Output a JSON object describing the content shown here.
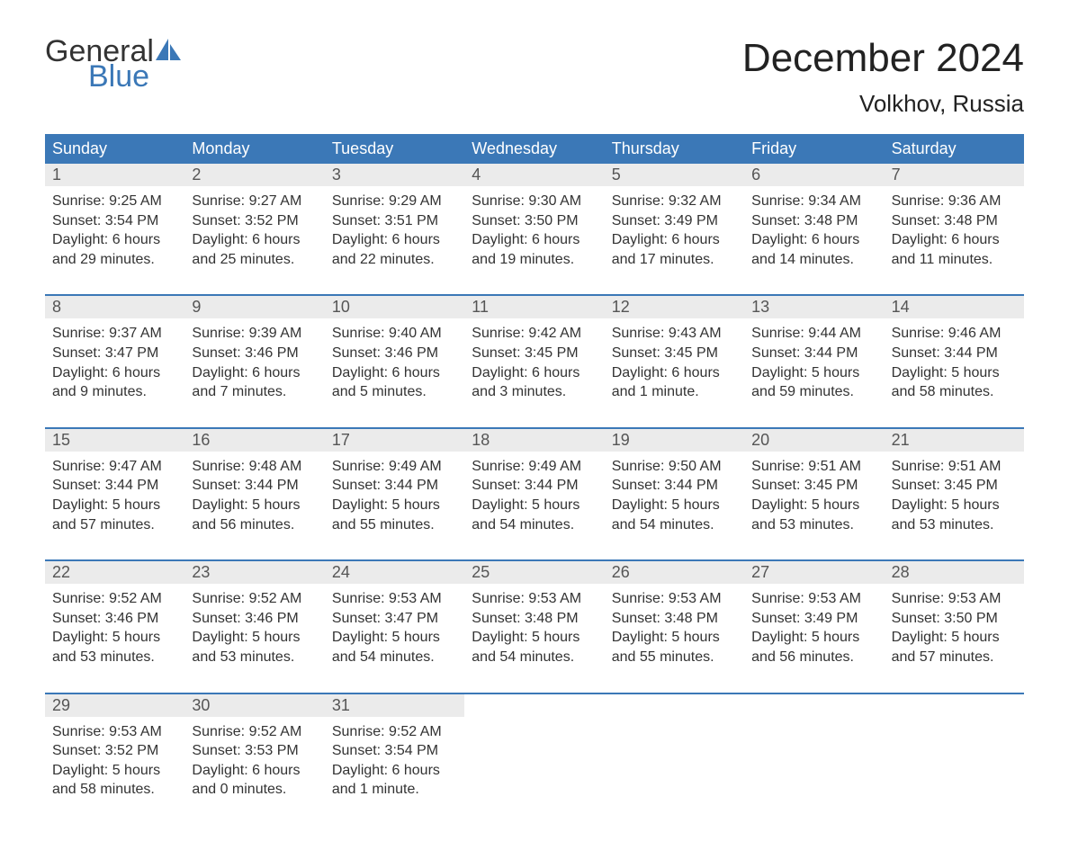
{
  "logo": {
    "text1": "General",
    "text2": "Blue",
    "color_general": "#333333",
    "color_blue": "#3b78b7"
  },
  "title": "December 2024",
  "location": "Volkhov, Russia",
  "colors": {
    "header_bg": "#3b78b7",
    "header_text": "#ffffff",
    "daynum_bg": "#ebebeb",
    "daynum_text": "#555555",
    "body_text": "#333333",
    "week_border": "#3b78b7",
    "page_bg": "#ffffff"
  },
  "fonts": {
    "title_size": 44,
    "location_size": 26,
    "dow_size": 18,
    "daynum_size": 18,
    "body_size": 16
  },
  "day_labels": {
    "sunrise_prefix": "Sunrise: ",
    "sunset_prefix": "Sunset: ",
    "daylight_prefix": "Daylight: "
  },
  "dow": [
    "Sunday",
    "Monday",
    "Tuesday",
    "Wednesday",
    "Thursday",
    "Friday",
    "Saturday"
  ],
  "days": [
    {
      "n": 1,
      "sunrise": "9:25 AM",
      "sunset": "3:54 PM",
      "daylight": "6 hours and 29 minutes."
    },
    {
      "n": 2,
      "sunrise": "9:27 AM",
      "sunset": "3:52 PM",
      "daylight": "6 hours and 25 minutes."
    },
    {
      "n": 3,
      "sunrise": "9:29 AM",
      "sunset": "3:51 PM",
      "daylight": "6 hours and 22 minutes."
    },
    {
      "n": 4,
      "sunrise": "9:30 AM",
      "sunset": "3:50 PM",
      "daylight": "6 hours and 19 minutes."
    },
    {
      "n": 5,
      "sunrise": "9:32 AM",
      "sunset": "3:49 PM",
      "daylight": "6 hours and 17 minutes."
    },
    {
      "n": 6,
      "sunrise": "9:34 AM",
      "sunset": "3:48 PM",
      "daylight": "6 hours and 14 minutes."
    },
    {
      "n": 7,
      "sunrise": "9:36 AM",
      "sunset": "3:48 PM",
      "daylight": "6 hours and 11 minutes."
    },
    {
      "n": 8,
      "sunrise": "9:37 AM",
      "sunset": "3:47 PM",
      "daylight": "6 hours and 9 minutes."
    },
    {
      "n": 9,
      "sunrise": "9:39 AM",
      "sunset": "3:46 PM",
      "daylight": "6 hours and 7 minutes."
    },
    {
      "n": 10,
      "sunrise": "9:40 AM",
      "sunset": "3:46 PM",
      "daylight": "6 hours and 5 minutes."
    },
    {
      "n": 11,
      "sunrise": "9:42 AM",
      "sunset": "3:45 PM",
      "daylight": "6 hours and 3 minutes."
    },
    {
      "n": 12,
      "sunrise": "9:43 AM",
      "sunset": "3:45 PM",
      "daylight": "6 hours and 1 minute."
    },
    {
      "n": 13,
      "sunrise": "9:44 AM",
      "sunset": "3:44 PM",
      "daylight": "5 hours and 59 minutes."
    },
    {
      "n": 14,
      "sunrise": "9:46 AM",
      "sunset": "3:44 PM",
      "daylight": "5 hours and 58 minutes."
    },
    {
      "n": 15,
      "sunrise": "9:47 AM",
      "sunset": "3:44 PM",
      "daylight": "5 hours and 57 minutes."
    },
    {
      "n": 16,
      "sunrise": "9:48 AM",
      "sunset": "3:44 PM",
      "daylight": "5 hours and 56 minutes."
    },
    {
      "n": 17,
      "sunrise": "9:49 AM",
      "sunset": "3:44 PM",
      "daylight": "5 hours and 55 minutes."
    },
    {
      "n": 18,
      "sunrise": "9:49 AM",
      "sunset": "3:44 PM",
      "daylight": "5 hours and 54 minutes."
    },
    {
      "n": 19,
      "sunrise": "9:50 AM",
      "sunset": "3:44 PM",
      "daylight": "5 hours and 54 minutes."
    },
    {
      "n": 20,
      "sunrise": "9:51 AM",
      "sunset": "3:45 PM",
      "daylight": "5 hours and 53 minutes."
    },
    {
      "n": 21,
      "sunrise": "9:51 AM",
      "sunset": "3:45 PM",
      "daylight": "5 hours and 53 minutes."
    },
    {
      "n": 22,
      "sunrise": "9:52 AM",
      "sunset": "3:46 PM",
      "daylight": "5 hours and 53 minutes."
    },
    {
      "n": 23,
      "sunrise": "9:52 AM",
      "sunset": "3:46 PM",
      "daylight": "5 hours and 53 minutes."
    },
    {
      "n": 24,
      "sunrise": "9:53 AM",
      "sunset": "3:47 PM",
      "daylight": "5 hours and 54 minutes."
    },
    {
      "n": 25,
      "sunrise": "9:53 AM",
      "sunset": "3:48 PM",
      "daylight": "5 hours and 54 minutes."
    },
    {
      "n": 26,
      "sunrise": "9:53 AM",
      "sunset": "3:48 PM",
      "daylight": "5 hours and 55 minutes."
    },
    {
      "n": 27,
      "sunrise": "9:53 AM",
      "sunset": "3:49 PM",
      "daylight": "5 hours and 56 minutes."
    },
    {
      "n": 28,
      "sunrise": "9:53 AM",
      "sunset": "3:50 PM",
      "daylight": "5 hours and 57 minutes."
    },
    {
      "n": 29,
      "sunrise": "9:53 AM",
      "sunset": "3:52 PM",
      "daylight": "5 hours and 58 minutes."
    },
    {
      "n": 30,
      "sunrise": "9:52 AM",
      "sunset": "3:53 PM",
      "daylight": "6 hours and 0 minutes."
    },
    {
      "n": 31,
      "sunrise": "9:52 AM",
      "sunset": "3:54 PM",
      "daylight": "6 hours and 1 minute."
    }
  ],
  "start_dow": 0,
  "total_cells": 35
}
